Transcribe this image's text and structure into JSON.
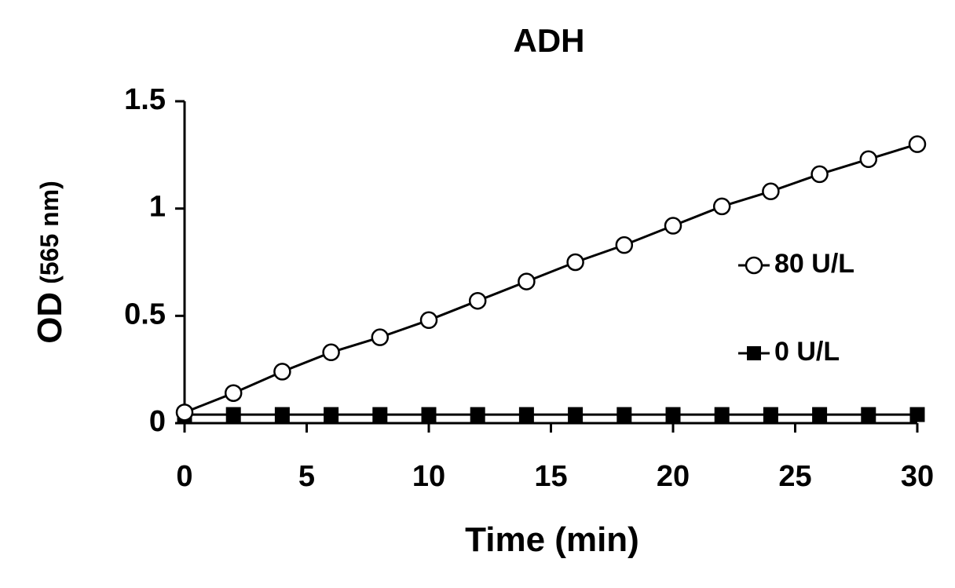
{
  "chart_data": {
    "type": "line",
    "title": "ADH",
    "xlabel": "Time (min)",
    "ylabel_main": "OD",
    "ylabel_unit": "(565 nm)",
    "xlim": [
      0,
      30
    ],
    "ylim": [
      0,
      1.5
    ],
    "x_ticks": [
      {
        "value": 0,
        "label": "0"
      },
      {
        "value": 5,
        "label": "5"
      },
      {
        "value": 10,
        "label": "10"
      },
      {
        "value": 15,
        "label": "15"
      },
      {
        "value": 20,
        "label": "20"
      },
      {
        "value": 25,
        "label": "25"
      },
      {
        "value": 30,
        "label": "30"
      }
    ],
    "y_ticks": [
      {
        "value": 0,
        "label": "0"
      },
      {
        "value": 0.5,
        "label": "0.5"
      },
      {
        "value": 1,
        "label": "1"
      },
      {
        "value": 1.5,
        "label": "1.5"
      }
    ],
    "grid": false,
    "legend_position": "right",
    "x": [
      0,
      2,
      4,
      6,
      8,
      10,
      12,
      14,
      16,
      18,
      20,
      22,
      24,
      26,
      28,
      30
    ],
    "series": [
      {
        "name": "80 U/L",
        "marker": "open-circle",
        "color": "#000000",
        "values": [
          0.05,
          0.14,
          0.24,
          0.33,
          0.4,
          0.48,
          0.57,
          0.66,
          0.75,
          0.83,
          0.92,
          1.01,
          1.08,
          1.16,
          1.23,
          1.3
        ]
      },
      {
        "name": "0 U/L",
        "marker": "filled-square",
        "color": "#000000",
        "values": [
          0.04,
          0.04,
          0.04,
          0.04,
          0.04,
          0.04,
          0.04,
          0.04,
          0.04,
          0.04,
          0.04,
          0.04,
          0.04,
          0.04,
          0.04,
          0.04
        ]
      }
    ]
  }
}
